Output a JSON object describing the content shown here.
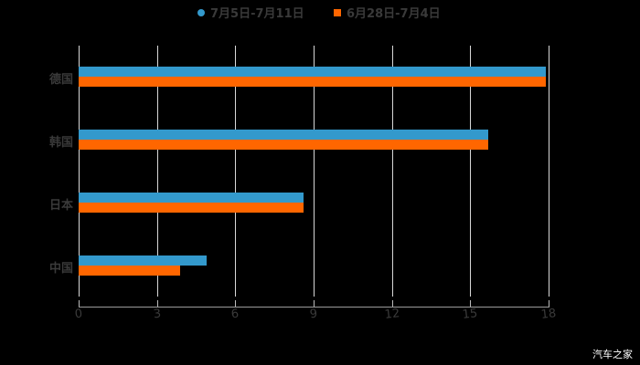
{
  "chart_data": {
    "type": "bar",
    "orientation": "horizontal",
    "title": "",
    "xlabel": "",
    "ylabel": "",
    "categories": [
      "德国",
      "韩国",
      "日本",
      "中国"
    ],
    "series": [
      {
        "name": "7月5日-7月11日",
        "color": "#3399cc",
        "values": [
          17.9,
          15.7,
          8.6,
          4.9
        ]
      },
      {
        "name": "6月28日-7月4日",
        "color": "#ff6600",
        "values": [
          17.9,
          15.7,
          8.6,
          3.9
        ]
      }
    ],
    "xlim": [
      0,
      18
    ],
    "xticks": [
      "0",
      "3",
      "6",
      "9",
      "12",
      "15",
      "18"
    ],
    "grid": true,
    "legend_position": "top"
  },
  "legend": {
    "series0": "7月5日-7月11日",
    "series1": "6月28日-7月4日"
  },
  "watermark": "汽车之家"
}
